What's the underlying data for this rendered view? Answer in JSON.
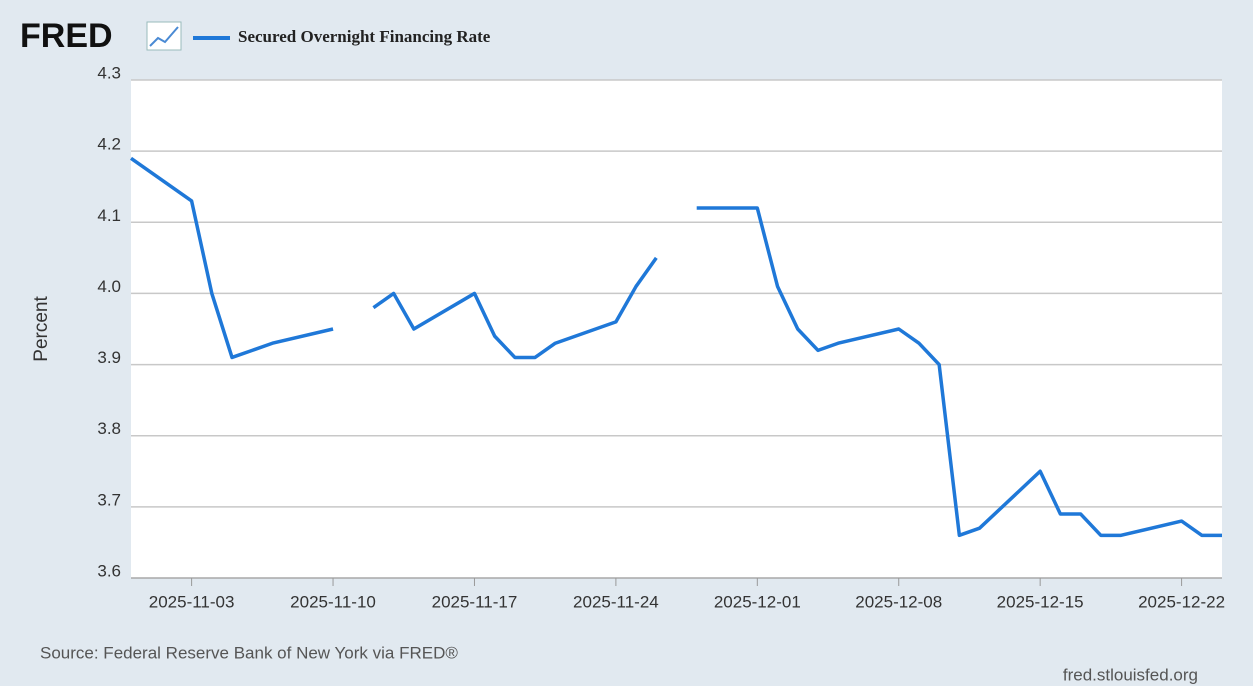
{
  "chart_data": {
    "type": "line",
    "logo": "FRED",
    "ylabel": "Percent",
    "source": "Source: Federal Reserve Bank of New York via FRED®",
    "credit": "fred.stlouisfed.org",
    "xlim": [
      "2025-10-31",
      "2025-12-24"
    ],
    "xticks": [
      "2025-11-03",
      "2025-11-10",
      "2025-11-17",
      "2025-11-24",
      "2025-12-01",
      "2025-12-08",
      "2025-12-15",
      "2025-12-22"
    ],
    "ylim": [
      3.6,
      4.3
    ],
    "yticks": [
      3.6,
      3.7,
      3.8,
      3.9,
      {
        "value": 4,
        "label": "4.0"
      },
      4.1,
      4.2,
      4.3
    ],
    "grid": true,
    "x": [
      "2025-10-31",
      "2025-11-03",
      "2025-11-04",
      "2025-11-05",
      "2025-11-06",
      "2025-11-07",
      "2025-11-10",
      "2025-11-11",
      "2025-11-12",
      "2025-11-13",
      "2025-11-14",
      "2025-11-17",
      "2025-11-18",
      "2025-11-19",
      "2025-11-20",
      "2025-11-21",
      "2025-11-24",
      "2025-11-25",
      "2025-11-26",
      "2025-11-27",
      "2025-11-28",
      "2025-12-01",
      "2025-12-02",
      "2025-12-03",
      "2025-12-04",
      "2025-12-05",
      "2025-12-08",
      "2025-12-09",
      "2025-12-10",
      "2025-12-11",
      "2025-12-12",
      "2025-12-15",
      "2025-12-16",
      "2025-12-17",
      "2025-12-18",
      "2025-12-19",
      "2025-12-22",
      "2025-12-23",
      "2025-12-24"
    ],
    "series": [
      {
        "name": "Secured Overnight Financing Rate",
        "color": "#1f78d8",
        "values": [
          4.19,
          4.13,
          4.0,
          3.91,
          3.92,
          3.93,
          3.95,
          null,
          3.98,
          4.0,
          3.95,
          4.0,
          3.94,
          3.91,
          3.91,
          3.93,
          3.96,
          4.01,
          4.05,
          null,
          4.12,
          4.12,
          4.01,
          3.95,
          3.92,
          3.93,
          3.95,
          3.93,
          3.9,
          3.66,
          3.67,
          3.75,
          3.69,
          3.69,
          3.66,
          3.66,
          3.68,
          3.66,
          3.66
        ]
      }
    ]
  }
}
